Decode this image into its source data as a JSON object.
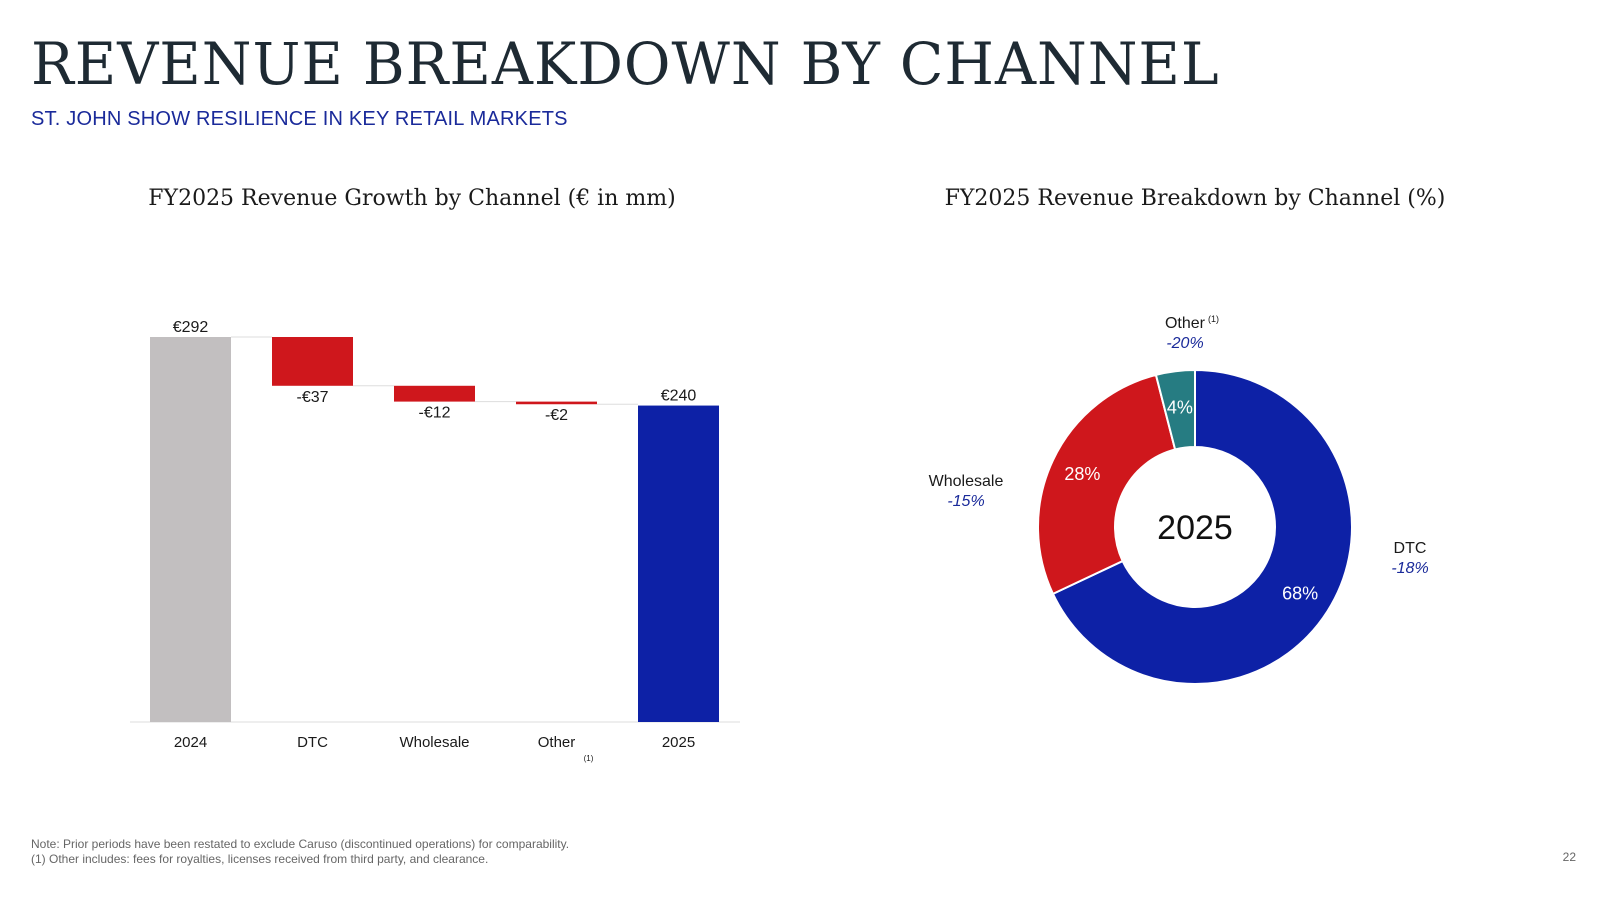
{
  "header": {
    "title": "REVENUE BREAKDOWN BY CHANNEL",
    "subtitle": "ST. JOHN SHOW RESILIENCE IN KEY RETAIL MARKETS"
  },
  "footer": {
    "note1": "Note: Prior periods have been restated to exclude Caruso (discontinued operations) for comparability.",
    "note2": "(1) Other includes: fees for royalties, licenses received from third party, and clearance.",
    "page_number": "22"
  },
  "colors": {
    "base_bar": "#c2bfc0",
    "decrease": "#cf171c",
    "total_bar": "#0d21a6",
    "other_slice": "#267c82",
    "growth_text": "#1a2a9a"
  },
  "chart_data": [
    {
      "type": "bar",
      "subtype": "waterfall",
      "title": "FY2025 Revenue Growth by Channel (€ in mm)",
      "categories": [
        "2024",
        "DTC",
        "Wholesale",
        "Other",
        "2025"
      ],
      "category_footnotes": [
        "",
        "",
        "",
        "(1)",
        ""
      ],
      "values": [
        292,
        -37,
        -12,
        -2,
        240
      ],
      "value_labels": [
        "€292",
        "-€37",
        "-€12",
        "-€2",
        "€240"
      ],
      "bar_kinds": [
        "total",
        "delta",
        "delta",
        "delta",
        "total"
      ],
      "ylim": [
        0,
        292
      ],
      "grid": false
    },
    {
      "type": "pie",
      "subtype": "donut",
      "title": "FY2025 Revenue Breakdown by Channel (%)",
      "center_label": "2025",
      "slices": [
        {
          "name": "DTC",
          "value": 68,
          "label": "68%",
          "growth": "-18%",
          "footnote": ""
        },
        {
          "name": "Wholesale",
          "value": 28,
          "label": "28%",
          "growth": "-15%",
          "footnote": ""
        },
        {
          "name": "Other",
          "value": 4,
          "label": "4%",
          "growth": "-20%",
          "footnote": "(1)"
        }
      ]
    }
  ]
}
